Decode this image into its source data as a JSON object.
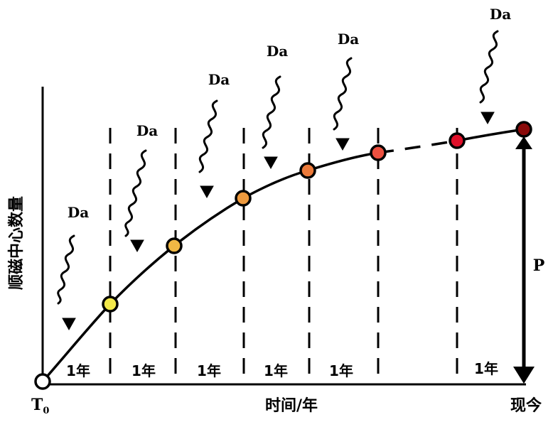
{
  "y_axis_label": "顺磁中心数量",
  "x_axis_label": "时间/年",
  "start_label_main": "T",
  "start_label_sub": "0",
  "end_label": "现今",
  "interval_labels": [
    "1年",
    "1年",
    "1年",
    "1年",
    "1年",
    "1年"
  ],
  "dose_label": "Da",
  "p_label": "P",
  "point_colors": [
    "#ffffff",
    "#f2e84a",
    "#f0b844",
    "#ee9a3e",
    "#ec7a3a",
    "#ec5040",
    "#e0102a",
    "#8a0a0a"
  ]
}
